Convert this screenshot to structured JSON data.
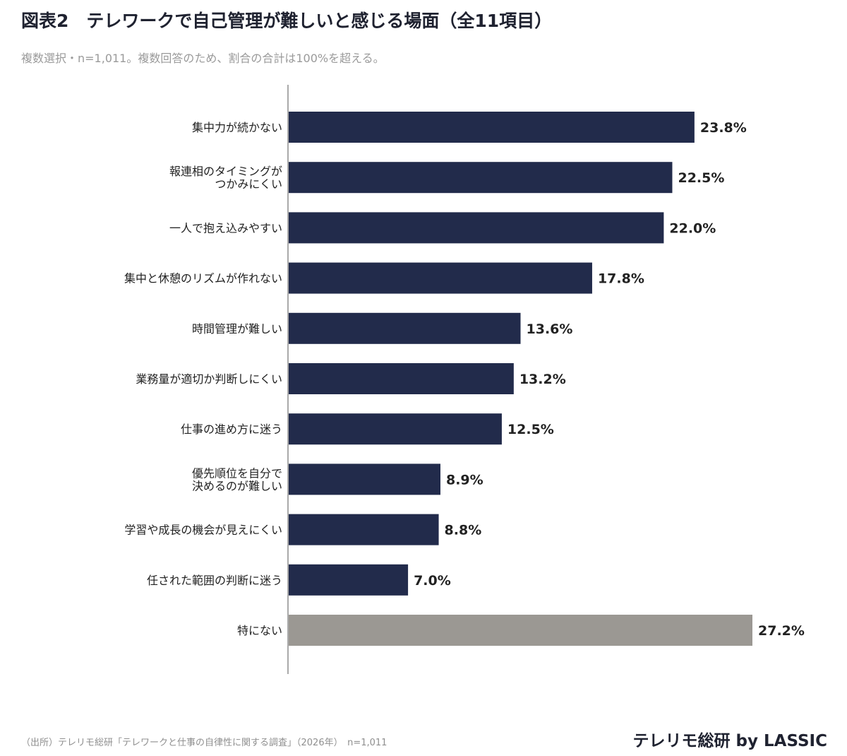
{
  "title": "図表2　テレワークで自己管理が難しいと感じる場面（全11項目）",
  "subtitle": "複数選択・n=1,011。複数回答のため、割合の合計は100%を超える。",
  "footer": {
    "source": "（出所）テレリモ総研「テレワークと仕事の自律性に関する調査」（2026年）　n=1,011",
    "brand": "テレリモ総研 by LASSIC"
  },
  "colors": {
    "bar_primary": "#222b4b",
    "bar_none": "#9b9893",
    "axis": "#aaaaaa"
  },
  "chart_data": {
    "type": "bar",
    "orientation": "horizontal",
    "unit": "%",
    "categories": [
      [
        "集中力が続かない"
      ],
      [
        "報連相のタイミングが",
        "つかみにくい"
      ],
      [
        "一人で抱え込みやすい"
      ],
      [
        "集中と休憩のリズムが作れない"
      ],
      [
        "時間管理が難しい"
      ],
      [
        "業務量が適切か判断しにくい"
      ],
      [
        "仕事の進め方に迷う"
      ],
      [
        "優先順位を自分で",
        "決めるのが難しい"
      ],
      [
        "学習や成長の機会が見えにくい"
      ],
      [
        "任された範囲の判断に迷う"
      ],
      [
        "特にない"
      ]
    ],
    "values": [
      23.8,
      22.5,
      22.0,
      17.8,
      13.6,
      13.2,
      12.5,
      8.9,
      8.8,
      7.0,
      27.2
    ],
    "value_labels": [
      "23.8%",
      "22.5%",
      "22.0%",
      "17.8%",
      "13.6%",
      "13.2%",
      "12.5%",
      "8.9%",
      "8.8%",
      "7.0%",
      "27.2%"
    ],
    "highlight_last": true,
    "xlim": [
      0,
      27.2
    ],
    "grid": false,
    "legend": "none"
  }
}
